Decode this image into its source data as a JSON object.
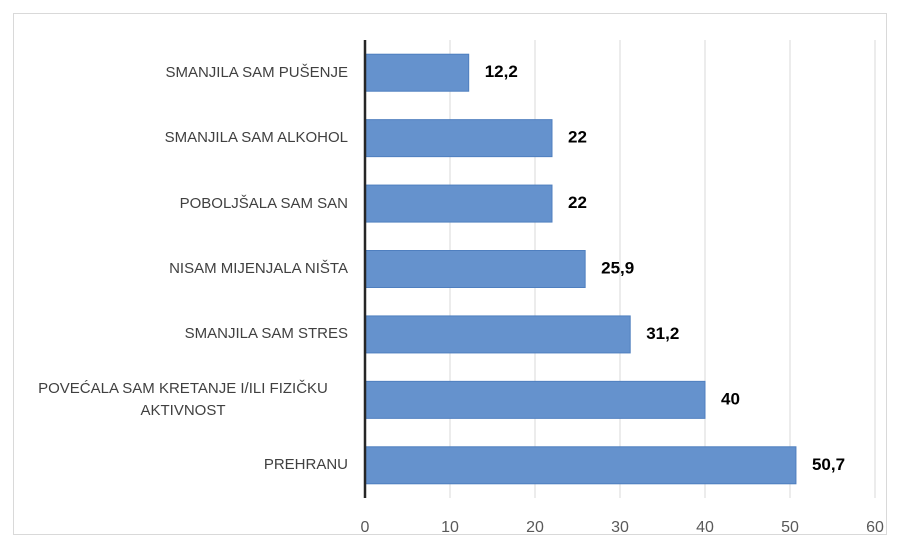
{
  "chart_data": {
    "type": "bar",
    "orientation": "horizontal",
    "categories": [
      "SMANJILA SAM PUŠENJE",
      "SMANJILA SAM ALKOHOL",
      "POBOLJŠALA SAM SAN",
      "NISAM MIJENJALA NIŠTA",
      "SMANJILA SAM STRES",
      "POVEĆALA SAM KRETANJE I/ILI FIZIČKU AKTIVNOST",
      "PREHRANU"
    ],
    "values": [
      12.2,
      22,
      22,
      25.9,
      31.2,
      40,
      50.7
    ],
    "value_labels": [
      "12,2",
      "22",
      "22",
      "25,9",
      "31,2",
      "40",
      "50,7"
    ],
    "color": "#6592cd",
    "xlim": [
      0,
      60
    ],
    "xticks": [
      0,
      10,
      20,
      30,
      40,
      50,
      60
    ],
    "grid": true
  }
}
